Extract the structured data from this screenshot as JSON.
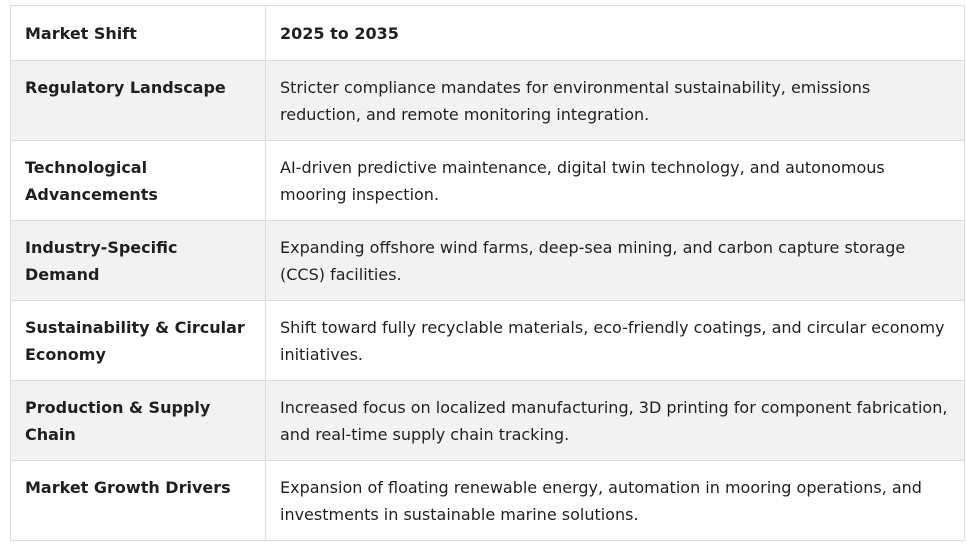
{
  "table": {
    "headers": [
      "Market Shift",
      "2025 to 2035"
    ],
    "rows": [
      {
        "shift": "Regulatory Landscape",
        "detail": "Stricter compliance mandates for environmental sustainability, emissions reduction, and remote monitoring integration."
      },
      {
        "shift": "Technological Advancements",
        "detail": "AI-driven predictive maintenance, digital twin technology, and autonomous mooring inspection."
      },
      {
        "shift": "Industry-Specific Demand",
        "detail": "Expanding offshore wind farms, deep-sea mining, and carbon capture storage (CCS) facilities."
      },
      {
        "shift": "Sustainability & Circular Economy",
        "detail": "Shift toward fully recyclable materials, eco-friendly coatings, and circular economy initiatives."
      },
      {
        "shift": "Production & Supply Chain",
        "detail": "Increased focus on localized manufacturing, 3D printing for component fabrication, and real-time supply chain tracking."
      },
      {
        "shift": "Market Growth Drivers",
        "detail": "Expansion of floating renewable energy, automation in mooring operations, and investments in sustainable marine solutions."
      }
    ]
  }
}
